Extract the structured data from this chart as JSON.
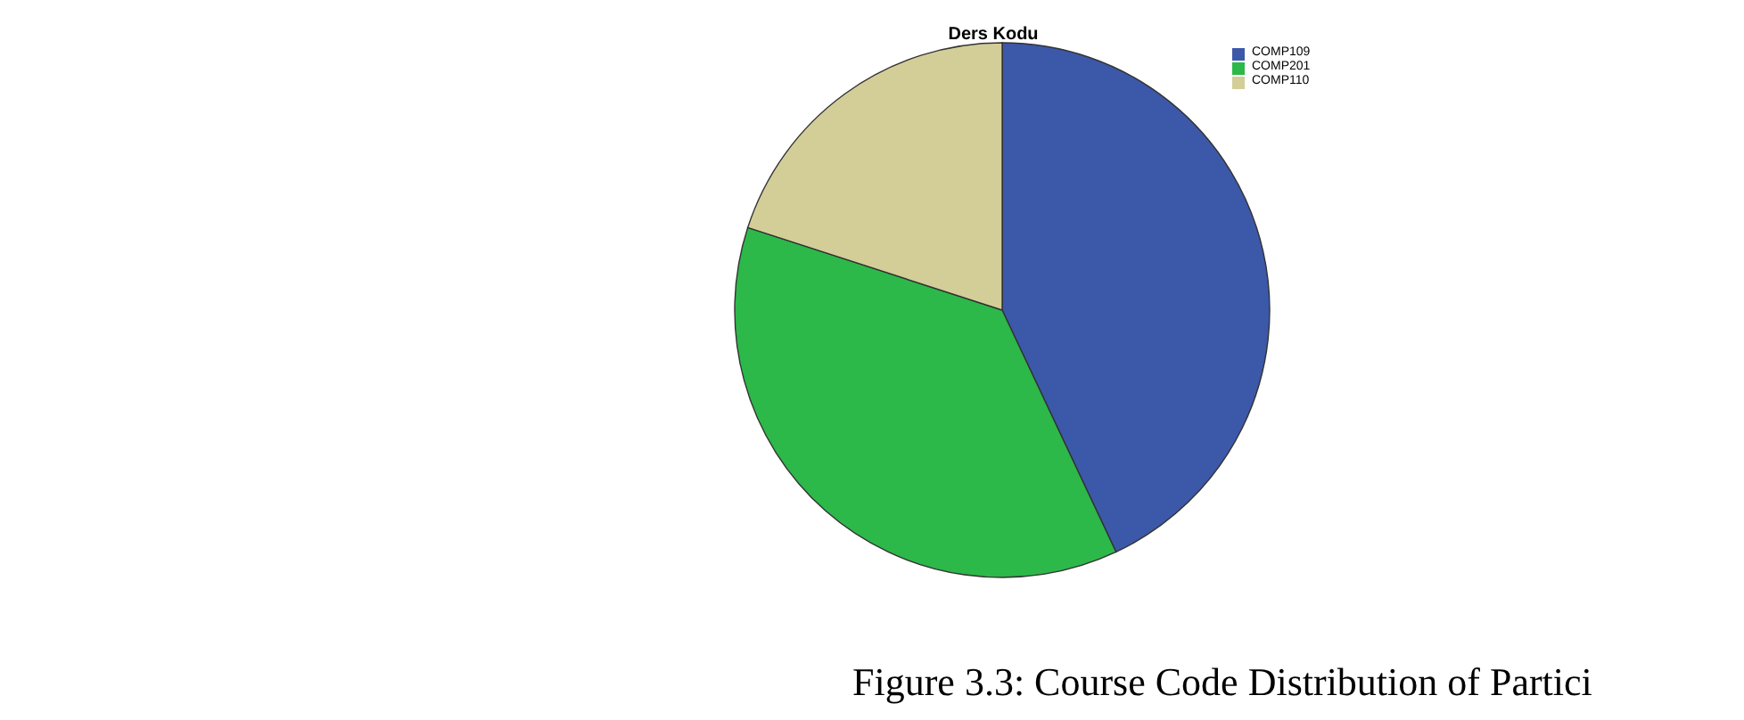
{
  "chart_data": {
    "type": "pie",
    "title": "Ders Kodu",
    "categories": [
      "COMP109",
      "COMP201",
      "COMP110"
    ],
    "values": [
      43,
      37,
      20
    ],
    "colors": [
      "#3c58a9",
      "#2db84a",
      "#d3ce98"
    ],
    "legend": "top right",
    "annotations": [
      "Figure 3.3: Course Code Distribution of Partici"
    ]
  }
}
